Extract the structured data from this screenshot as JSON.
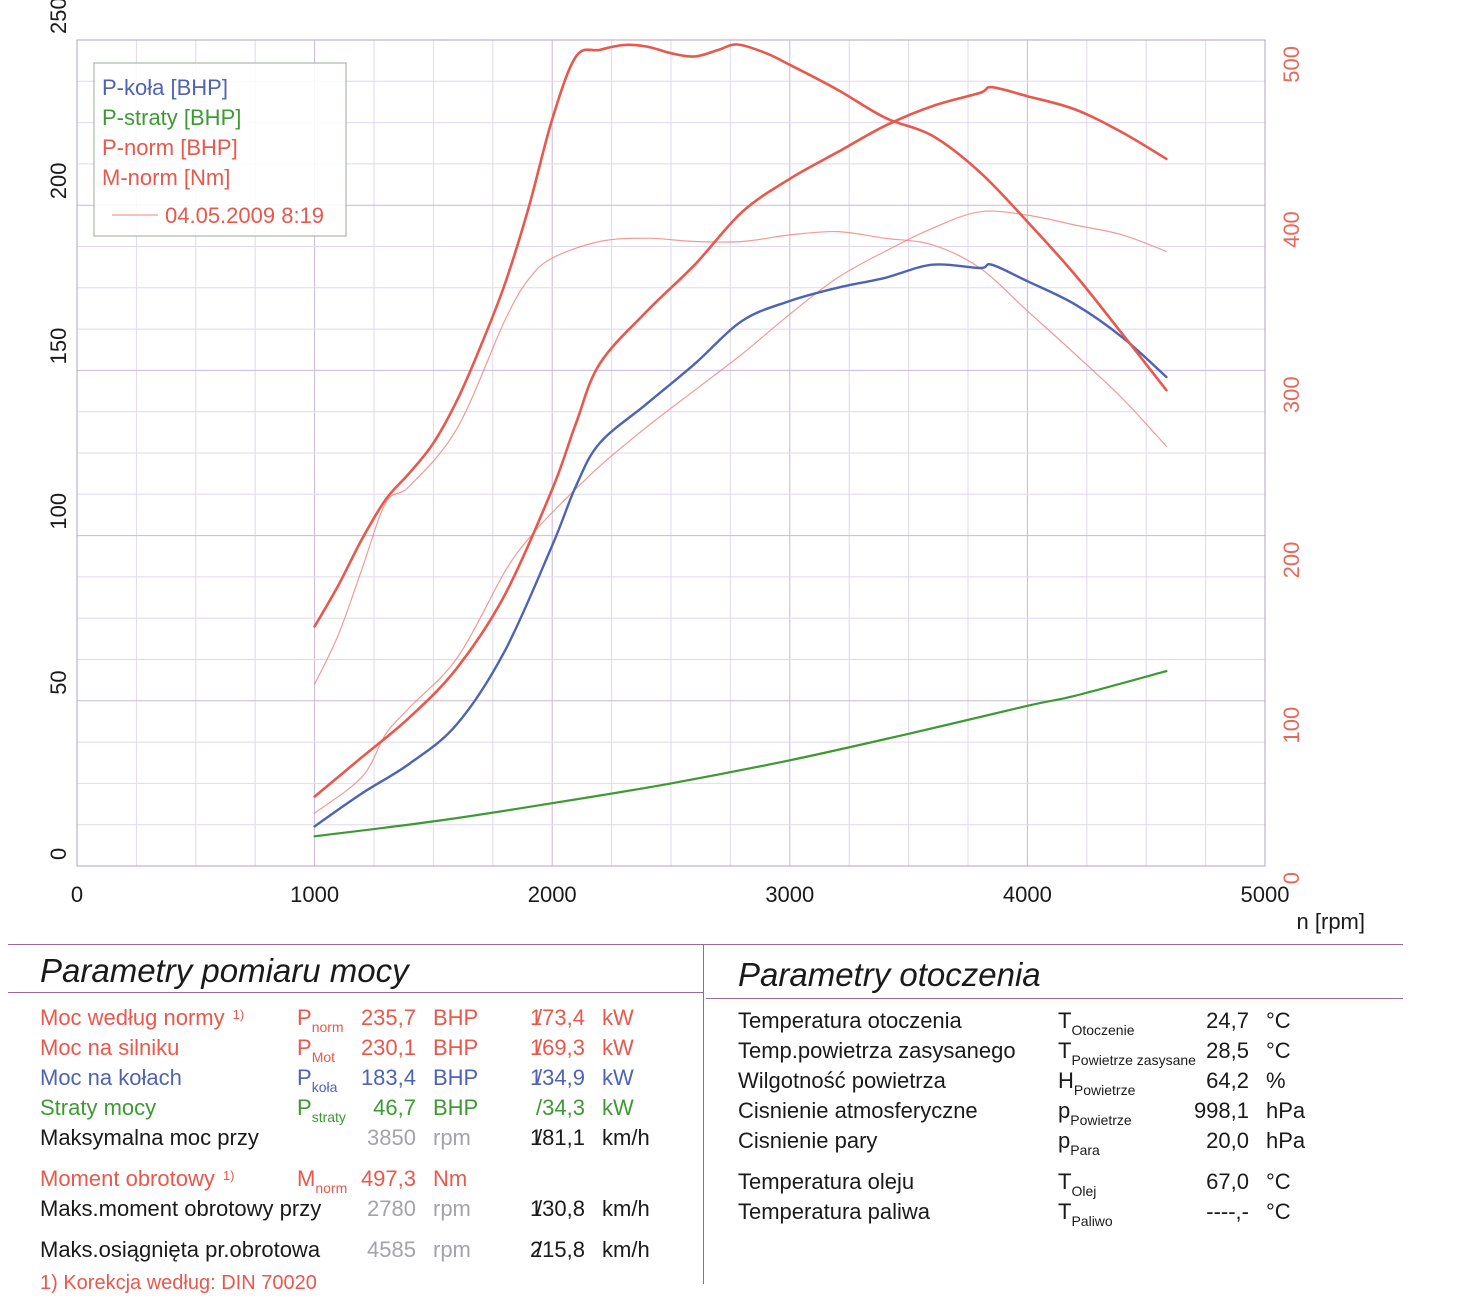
{
  "chart_data": {
    "type": "line",
    "title": "",
    "xlabel": "n [rpm]",
    "xlim": [
      0,
      5000
    ],
    "x_ticks": [
      "0",
      "1000",
      "2000",
      "3000",
      "4000",
      "5000"
    ],
    "y_left": {
      "label": "",
      "ylim": [
        0,
        250
      ],
      "ticks": [
        "0",
        "50",
        "100",
        "150",
        "200",
        "250"
      ]
    },
    "y_right": {
      "label": "",
      "ylim": [
        0,
        500
      ],
      "ticks": [
        "0",
        "100",
        "200",
        "300",
        "400",
        "500"
      ],
      "color": "#e8685c"
    },
    "grid": true,
    "legend": {
      "placement": "top-left",
      "entries": [
        "P-koła [BHP]",
        "P-straty [BHP]",
        "P-norm [BHP]",
        "M-norm [Nm]"
      ],
      "date": "04.05.2009 8:19"
    },
    "series": [
      {
        "name": "P-koła [BHP]",
        "axis": "left",
        "color": "#4e63b4",
        "width": 2.4,
        "x": [
          1000,
          1200,
          1400,
          1600,
          1800,
          2000,
          2100,
          2200,
          2400,
          2600,
          2800,
          3000,
          3200,
          3400,
          3600,
          3800,
          3850,
          4000,
          4200,
          4400,
          4585
        ],
        "y": [
          12,
          22,
          31,
          43,
          65,
          97,
          115,
          128,
          140,
          152,
          165,
          171,
          175,
          178,
          182,
          181,
          182,
          177,
          170,
          160,
          148
        ]
      },
      {
        "name": "P-straty [BHP]",
        "axis": "left",
        "color": "#3d9a32",
        "width": 2.2,
        "x": [
          1000,
          1500,
          2000,
          2500,
          3000,
          3500,
          4000,
          4200,
          4585
        ],
        "y": [
          9,
          13.5,
          19,
          25,
          32,
          40,
          48.5,
          51.5,
          59
        ]
      },
      {
        "name": "P-norm [BHP]",
        "axis": "left",
        "color": "#e8584c",
        "width": 2.6,
        "x": [
          1000,
          1200,
          1400,
          1600,
          1800,
          2000,
          2100,
          2200,
          2400,
          2600,
          2800,
          3000,
          3200,
          3400,
          3600,
          3800,
          3850,
          4000,
          4200,
          4400,
          4585
        ],
        "y": [
          21,
          33,
          45,
          60,
          82,
          114,
          134,
          152,
          168,
          182,
          198,
          208,
          216,
          224,
          230,
          234,
          235.7,
          233,
          229,
          222,
          214
        ]
      },
      {
        "name": "M-norm [Nm]",
        "axis": "right",
        "color": "#e8584c",
        "width": 2.6,
        "x": [
          1000,
          1100,
          1200,
          1300,
          1400,
          1500,
          1600,
          1700,
          1800,
          1900,
          2000,
          2100,
          2200,
          2300,
          2400,
          2500,
          2600,
          2700,
          2780,
          2900,
          3000,
          3200,
          3400,
          3600,
          3800,
          4000,
          4200,
          4400,
          4585
        ],
        "y": [
          145,
          170,
          198,
          222,
          238,
          256,
          282,
          315,
          352,
          398,
          452,
          490,
          494,
          497,
          496,
          492,
          490,
          494,
          497.3,
          492,
          485,
          470,
          453,
          442,
          420,
          390,
          358,
          322,
          288
        ]
      },
      {
        "name": "",
        "axis": "left",
        "color": "#ee8a82",
        "width": 1.2,
        "x": [
          1000,
          1200,
          1300,
          1400,
          1600,
          1800,
          1900,
          2000,
          2200,
          2400,
          2600,
          2800,
          3000,
          3200,
          3400,
          3600,
          3800,
          4000,
          4200,
          4400,
          4585
        ],
        "y": [
          16,
          27,
          40,
          48,
          63,
          89,
          99,
          107,
          121,
          133,
          144,
          155,
          167,
          178,
          186,
          193,
          198,
          197,
          194,
          191,
          186
        ]
      },
      {
        "name": "",
        "axis": "right",
        "color": "#ee8a82",
        "width": 1.2,
        "x": [
          1000,
          1100,
          1200,
          1300,
          1400,
          1600,
          1800,
          1900,
          2000,
          2200,
          2400,
          2600,
          2800,
          3000,
          3200,
          3400,
          3600,
          3800,
          4000,
          4200,
          4400,
          4585
        ],
        "y": [
          110,
          140,
          180,
          220,
          230,
          265,
          330,
          355,
          368,
          378,
          380,
          378,
          378,
          382,
          384,
          380,
          376,
          362,
          336,
          310,
          283,
          254
        ]
      }
    ]
  },
  "power": {
    "title": "Parametry pomiaru mocy",
    "rows": [
      {
        "label": "Moc według normy",
        "mark": "1)",
        "sym": "P",
        "sub": "norm",
        "v1": "235,7",
        "u1": "BHP",
        "sep": "/",
        "v2": "173,4",
        "u2": "kW"
      },
      {
        "label": "Moc na silniku",
        "sym": "P",
        "sub": "Mot",
        "v1": "230,1",
        "u1": "BHP",
        "sep": "/",
        "v2": "169,3",
        "u2": "kW"
      },
      {
        "label": "Moc na kołach",
        "sym": "P",
        "sub": "koła",
        "v1": "183,4",
        "u1": "BHP",
        "sep": "/",
        "v2": "134,9",
        "u2": "kW"
      },
      {
        "label": "Straty mocy",
        "sym": "P",
        "sub": "straty",
        "v1": "46,7",
        "u1": "BHP",
        "sep": "/",
        "v2": "34,3",
        "u2": "kW"
      },
      {
        "label": "Maksymalna moc przy",
        "v1": "3850",
        "u1": "rpm",
        "sep": "/",
        "v2": "181,1",
        "u2": "km/h"
      },
      {
        "label": "Moment obrotowy",
        "mark": "1)",
        "sym": "M",
        "sub": "norm",
        "v1": "497,3",
        "u1": "Nm"
      },
      {
        "label": "Maks.moment obrotowy przy",
        "v1": "2780",
        "u1": "rpm",
        "sep": "/",
        "v2": "130,8",
        "u2": "km/h"
      },
      {
        "label": "Maks.osiągnięta pr.obrotowa",
        "v1": "4585",
        "u1": "rpm",
        "sep": "/",
        "v2": "215,8",
        "u2": "km/h"
      }
    ],
    "footnote": "1) Korekcja według: DIN 70020"
  },
  "ambient": {
    "title": "Parametry otoczenia",
    "rows": [
      {
        "label": "Temperatura otoczenia",
        "sym": "T",
        "sub": "Otoczenie",
        "value": "24,7",
        "unit": "°C"
      },
      {
        "label": "Temp.powietrza zasysanego",
        "sym": "T",
        "sub": "Powietrze zasysane",
        "value": "28,5",
        "unit": "°C"
      },
      {
        "label": "Wilgotność powietrza",
        "sym": "H",
        "sub": "Powietrze",
        "value": "64,2",
        "unit": "%"
      },
      {
        "label": "Cisnienie atmosferyczne",
        "sym": "p",
        "sub": "Powietrze",
        "value": "998,1",
        "unit": "hPa"
      },
      {
        "label": "Cisnienie pary",
        "sym": "p",
        "sub": "Para",
        "value": "20,0",
        "unit": "hPa"
      },
      {
        "label": "Temperatura oleju",
        "sym": "T",
        "sub": "Olej",
        "value": "67,0",
        "unit": "°C"
      },
      {
        "label": "Temperatura paliwa",
        "sym": "T",
        "sub": "Paliwo",
        "value": "----,-",
        "unit": "°C"
      }
    ]
  },
  "colors": {
    "norm": "#e8584c",
    "wheel": "#4e63b4",
    "loss": "#3d9a32",
    "grid_major": "#c9b8d9",
    "grid_minor": "#e2d8ec",
    "right_axis": "#e8685c",
    "gray_value": "#a3a3ab"
  }
}
